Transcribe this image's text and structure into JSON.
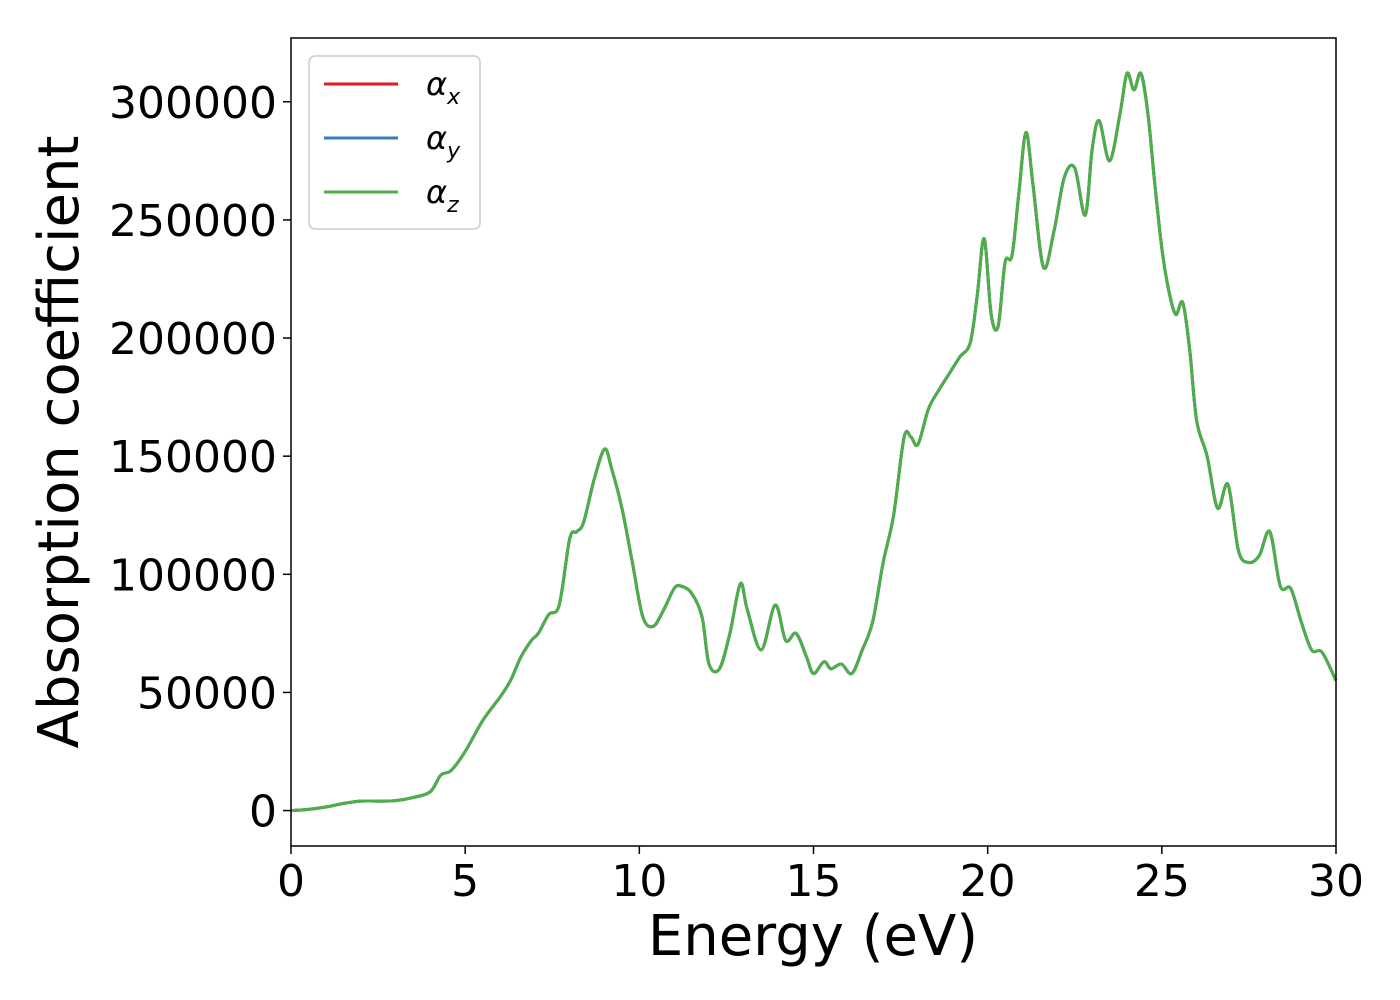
{
  "chart_data": {
    "type": "line",
    "xlabel": "Energy (eV)",
    "ylabel": "Absorption coefficient",
    "xlim": [
      0,
      30
    ],
    "ylim": [
      -15000,
      327000
    ],
    "x_ticks": [
      0,
      5,
      10,
      15,
      20,
      25,
      30
    ],
    "y_ticks": [
      0,
      50000,
      100000,
      150000,
      200000,
      250000,
      300000
    ],
    "x_tick_labels": [
      "0",
      "5",
      "10",
      "15",
      "20",
      "25",
      "30"
    ],
    "y_tick_labels": [
      "0",
      "50000",
      "100000",
      "150000",
      "200000",
      "250000",
      "300000"
    ],
    "grid": false,
    "legend_position": "top-left",
    "x": [
      0,
      0.5,
      1.0,
      1.5,
      2.0,
      2.5,
      3.0,
      3.5,
      4.0,
      4.3,
      4.6,
      5.0,
      5.5,
      6.0,
      6.3,
      6.6,
      6.9,
      7.1,
      7.4,
      7.7,
      8.0,
      8.2,
      8.4,
      8.7,
      9.0,
      9.2,
      9.5,
      9.8,
      10.1,
      10.4,
      10.7,
      11.0,
      11.2,
      11.5,
      11.8,
      12.0,
      12.3,
      12.6,
      12.9,
      13.1,
      13.5,
      13.9,
      14.2,
      14.5,
      14.8,
      15.0,
      15.3,
      15.5,
      15.8,
      16.1,
      16.4,
      16.7,
      17.0,
      17.3,
      17.6,
      17.8,
      18.0,
      18.3,
      18.6,
      18.9,
      19.2,
      19.5,
      19.7,
      19.9,
      20.1,
      20.3,
      20.5,
      20.7,
      20.9,
      21.1,
      21.3,
      21.6,
      21.9,
      22.2,
      22.5,
      22.8,
      23.0,
      23.2,
      23.5,
      23.8,
      24.0,
      24.2,
      24.4,
      24.6,
      24.8,
      25.0,
      25.2,
      25.4,
      25.6,
      25.8,
      26.0,
      26.3,
      26.6,
      26.9,
      27.2,
      27.5,
      27.8,
      28.1,
      28.4,
      28.7,
      29.0,
      29.3,
      29.6,
      30.0
    ],
    "series": [
      {
        "name": "αx",
        "color": "#e41a1c",
        "values": [
          0,
          500,
          1500,
          3000,
          4000,
          4000,
          4200,
          5500,
          8000,
          15000,
          17000,
          25000,
          38000,
          48000,
          55000,
          65000,
          72000,
          75000,
          83000,
          87000,
          115000,
          118000,
          122000,
          140000,
          153000,
          145000,
          128000,
          105000,
          82000,
          78000,
          85000,
          94000,
          95000,
          92000,
          82000,
          62000,
          60000,
          75000,
          96000,
          85000,
          68000,
          87000,
          72000,
          75000,
          65000,
          58000,
          63000,
          60000,
          62000,
          58000,
          68000,
          80000,
          105000,
          125000,
          158000,
          158000,
          155000,
          170000,
          178000,
          185000,
          192000,
          198000,
          218000,
          242000,
          210000,
          205000,
          232000,
          235000,
          262000,
          287000,
          265000,
          230000,
          245000,
          268000,
          272000,
          252000,
          280000,
          292000,
          275000,
          295000,
          312000,
          305000,
          312000,
          295000,
          265000,
          238000,
          220000,
          210000,
          215000,
          195000,
          165000,
          150000,
          128000,
          138000,
          110000,
          105000,
          108000,
          118000,
          95000,
          94000,
          80000,
          68000,
          67000,
          55000
        ]
      },
      {
        "name": "αy",
        "color": "#377eb8",
        "values": [
          0,
          500,
          1500,
          3000,
          4000,
          4000,
          4200,
          5500,
          8000,
          15000,
          17000,
          25000,
          38000,
          48000,
          55000,
          65000,
          72000,
          75000,
          83000,
          87000,
          115000,
          118000,
          122000,
          140000,
          153000,
          145000,
          128000,
          105000,
          82000,
          78000,
          85000,
          94000,
          95000,
          92000,
          82000,
          62000,
          60000,
          75000,
          96000,
          85000,
          68000,
          87000,
          72000,
          75000,
          65000,
          58000,
          63000,
          60000,
          62000,
          58000,
          68000,
          80000,
          105000,
          125000,
          158000,
          158000,
          155000,
          170000,
          178000,
          185000,
          192000,
          198000,
          218000,
          242000,
          210000,
          205000,
          232000,
          235000,
          262000,
          287000,
          265000,
          230000,
          245000,
          268000,
          272000,
          252000,
          280000,
          292000,
          275000,
          295000,
          312000,
          305000,
          312000,
          295000,
          265000,
          238000,
          220000,
          210000,
          215000,
          195000,
          165000,
          150000,
          128000,
          138000,
          110000,
          105000,
          108000,
          118000,
          95000,
          94000,
          80000,
          68000,
          67000,
          55000
        ]
      },
      {
        "name": "αz",
        "color": "#4daf4a",
        "values": [
          0,
          500,
          1500,
          3000,
          4000,
          4000,
          4200,
          5500,
          8000,
          15000,
          17000,
          25000,
          38000,
          48000,
          55000,
          65000,
          72000,
          75000,
          83000,
          87000,
          115000,
          118000,
          122000,
          140000,
          153000,
          145000,
          128000,
          105000,
          82000,
          78000,
          85000,
          94000,
          95000,
          92000,
          82000,
          62000,
          60000,
          75000,
          96000,
          85000,
          68000,
          87000,
          72000,
          75000,
          65000,
          58000,
          63000,
          60000,
          62000,
          58000,
          68000,
          80000,
          105000,
          125000,
          158000,
          158000,
          155000,
          170000,
          178000,
          185000,
          192000,
          198000,
          218000,
          242000,
          210000,
          205000,
          232000,
          235000,
          262000,
          287000,
          265000,
          230000,
          245000,
          268000,
          272000,
          252000,
          280000,
          292000,
          275000,
          295000,
          312000,
          305000,
          312000,
          295000,
          265000,
          238000,
          220000,
          210000,
          215000,
          195000,
          165000,
          150000,
          128000,
          138000,
          110000,
          105000,
          108000,
          118000,
          95000,
          94000,
          80000,
          68000,
          67000,
          55000
        ]
      }
    ],
    "legend": {
      "entries": [
        {
          "symbol": "α",
          "sub": "x",
          "color": "#e41a1c"
        },
        {
          "symbol": "α",
          "sub": "y",
          "color": "#377eb8"
        },
        {
          "symbol": "α",
          "sub": "z",
          "color": "#4daf4a"
        }
      ]
    }
  }
}
